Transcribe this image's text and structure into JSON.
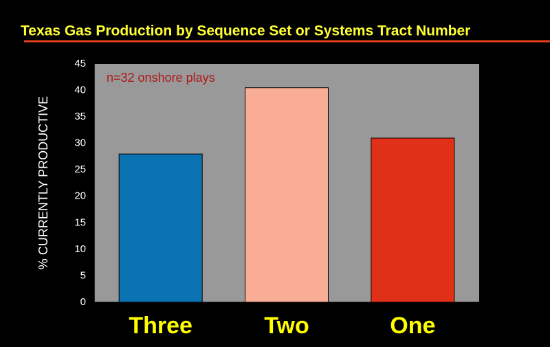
{
  "chart_data": {
    "type": "bar",
    "title": "Texas Gas Production by Sequence Set or Systems Tract Number",
    "ylabel": "% CURRENTLY PRODUCTIVE",
    "annotation": "n=32 onshore plays",
    "categories": [
      "Three",
      "Two",
      "One"
    ],
    "values": [
      28,
      40.5,
      31
    ],
    "colors": [
      "#0a72b0",
      "#f9ad96",
      "#e03018"
    ],
    "ylim": [
      0,
      45
    ],
    "yticks": [
      0,
      5,
      10,
      15,
      20,
      25,
      30,
      35,
      40,
      45
    ],
    "grid": false
  }
}
